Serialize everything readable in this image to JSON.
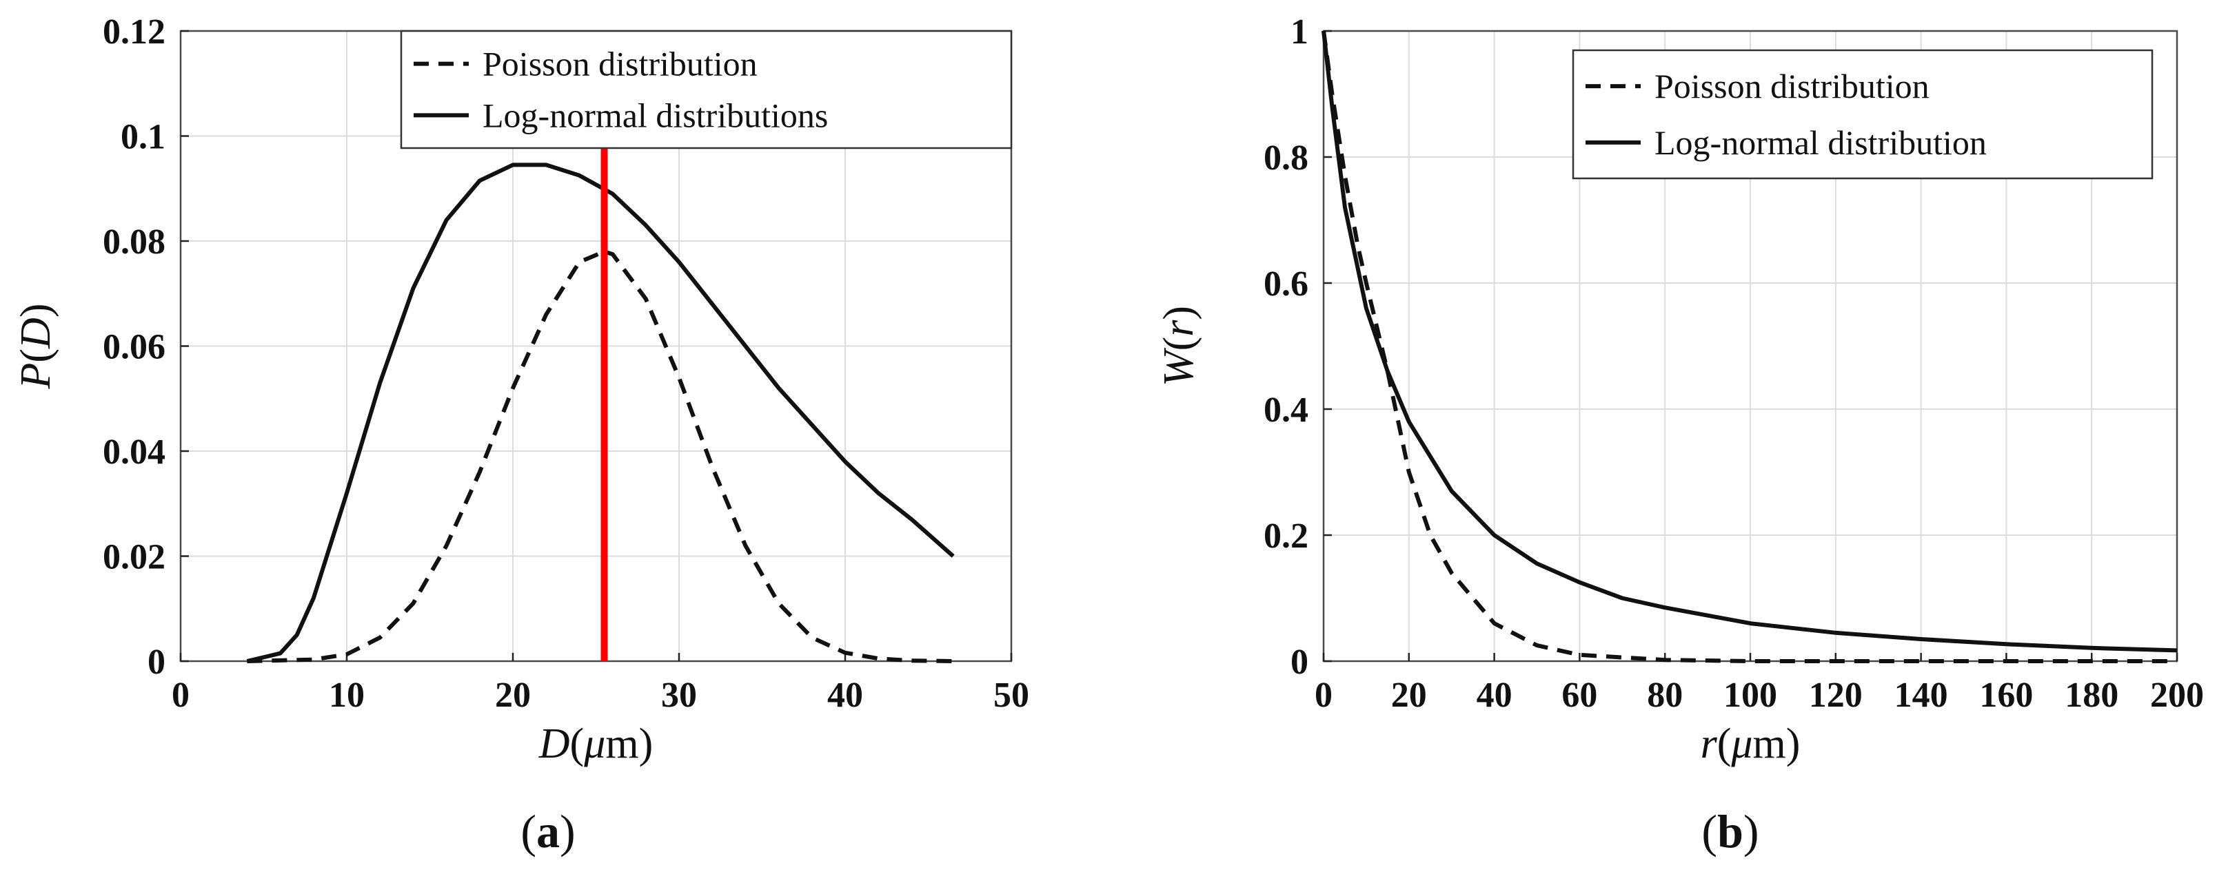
{
  "chart_data": [
    {
      "type": "line",
      "title": "",
      "panel_label": "a",
      "xlabel": {
        "var": "D",
        "unit": "μm"
      },
      "ylabel": {
        "var": "P",
        "arg": "D"
      },
      "xlim": [
        0,
        50
      ],
      "ylim": [
        0,
        0.12
      ],
      "xticks": [
        0,
        10,
        20,
        30,
        40,
        50
      ],
      "xtick_labels": [
        "0",
        "10",
        "20",
        "30",
        "40",
        "50"
      ],
      "yticks": [
        0,
        0.02,
        0.04,
        0.06,
        0.08,
        0.1,
        0.12
      ],
      "ytick_labels": [
        "0",
        "0.02",
        "0.04",
        "0.06",
        "0.08",
        "0.1",
        "0.12"
      ],
      "grid": true,
      "legend_position": "top-right",
      "series": [
        {
          "name": "Poisson distribution",
          "style": "dashed",
          "color": "#111111",
          "x": [
            4,
            8,
            10,
            12,
            14,
            16,
            18,
            20,
            22,
            24,
            25.5,
            26,
            28,
            30,
            32,
            34,
            36,
            38,
            40,
            42,
            44,
            46.5
          ],
          "y": [
            0,
            0.0003,
            0.0013,
            0.0045,
            0.011,
            0.022,
            0.036,
            0.052,
            0.066,
            0.076,
            0.078,
            0.0775,
            0.069,
            0.054,
            0.037,
            0.022,
            0.011,
            0.0045,
            0.0016,
            0.0005,
            0.0001,
            0
          ]
        },
        {
          "name": "Log-normal distributions",
          "style": "solid",
          "color": "#111111",
          "x": [
            4,
            6,
            7,
            8,
            10,
            12,
            14,
            16,
            18,
            20,
            22,
            24,
            26,
            28,
            30,
            32,
            34,
            36,
            38,
            40,
            42,
            44,
            46.5
          ],
          "y": [
            0,
            0.0015,
            0.005,
            0.012,
            0.032,
            0.053,
            0.071,
            0.084,
            0.0915,
            0.0945,
            0.0945,
            0.0925,
            0.089,
            0.083,
            0.076,
            0.068,
            0.06,
            0.052,
            0.045,
            0.038,
            0.032,
            0.027,
            0.02
          ]
        }
      ],
      "annotations": [
        {
          "type": "vertical-line",
          "x": 25.5,
          "color": "#ff0000"
        }
      ]
    },
    {
      "type": "line",
      "title": "",
      "panel_label": "b",
      "xlabel": {
        "var": "r",
        "unit": "μm"
      },
      "ylabel": {
        "var": "W",
        "arg": "r"
      },
      "xlim": [
        0,
        200
      ],
      "ylim": [
        0,
        1
      ],
      "xticks": [
        0,
        20,
        40,
        60,
        80,
        100,
        120,
        140,
        160,
        180,
        200
      ],
      "xtick_labels": [
        "0",
        "20",
        "40",
        "60",
        "80",
        "100",
        "120",
        "140",
        "160",
        "180",
        "200"
      ],
      "yticks": [
        0,
        0.2,
        0.4,
        0.6,
        0.8,
        1
      ],
      "ytick_labels": [
        "0",
        "0.2",
        "0.4",
        "0.6",
        "0.8",
        "1"
      ],
      "grid": true,
      "legend_position": "top-right",
      "series": [
        {
          "name": "Poisson distribution",
          "style": "dashed",
          "color": "#111111",
          "x": [
            0,
            2,
            5,
            8,
            10,
            15,
            20,
            25,
            30,
            40,
            50,
            60,
            80,
            100,
            150,
            200
          ],
          "y": [
            1,
            0.9,
            0.77,
            0.66,
            0.6,
            0.46,
            0.3,
            0.2,
            0.14,
            0.06,
            0.025,
            0.01,
            0.002,
            0,
            0,
            0
          ]
        },
        {
          "name": "Log-normal distribution",
          "style": "solid",
          "color": "#111111",
          "x": [
            0,
            2,
            5,
            10,
            15,
            20,
            30,
            40,
            50,
            60,
            70,
            80,
            100,
            120,
            140,
            160,
            180,
            200
          ],
          "y": [
            1,
            0.88,
            0.72,
            0.56,
            0.46,
            0.38,
            0.27,
            0.2,
            0.155,
            0.125,
            0.1,
            0.085,
            0.06,
            0.045,
            0.035,
            0.027,
            0.021,
            0.017
          ]
        }
      ],
      "annotations": []
    }
  ]
}
